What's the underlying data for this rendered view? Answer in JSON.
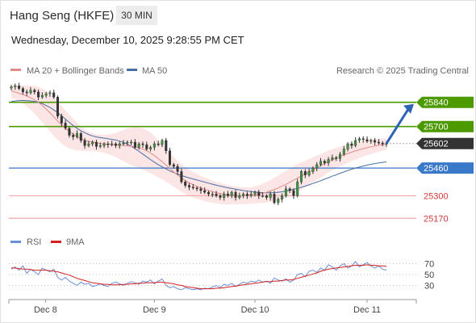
{
  "header": {
    "title": "Hang Seng (HKFE)",
    "interval": "30 MIN",
    "datetime": "Wednesday, December 10, 2025 9:28:55 PM CET"
  },
  "legend": {
    "ma20": "MA 20 + Bollinger Bands",
    "ma50": "MA 50",
    "source": "Research © 2025 Trading Central",
    "rsi": "RSI",
    "ma9": "9MA"
  },
  "colors": {
    "resistance": "#4c9a00",
    "current": "#333333",
    "pivot": "#3a78c9",
    "support": "#d93b3b",
    "support_line": "#f2a9a9",
    "ma20": "#e58a8a",
    "ma50": "#4a6fa5",
    "band": "#fbe0e0",
    "rsi": "#6b8fd6",
    "ma9": "#d42020",
    "arrow": "#2e64b5"
  },
  "chart_data": [
    {
      "type": "candlestick",
      "title": "",
      "x_ticks": [
        "Dec 8",
        "Dec 9",
        "Dec 10",
        "Dec 11"
      ],
      "ylim": [
        25120,
        25960
      ],
      "levels": [
        {
          "value": 25840,
          "kind": "resistance"
        },
        {
          "value": 25700,
          "kind": "resistance"
        },
        {
          "value": 25602,
          "kind": "current"
        },
        {
          "value": 25460,
          "kind": "pivot"
        },
        {
          "value": 25300,
          "kind": "support"
        },
        {
          "value": 25170,
          "kind": "support"
        }
      ],
      "close": [
        25930,
        25935,
        25920,
        25900,
        25895,
        25910,
        25900,
        25870,
        25880,
        25890,
        25895,
        25870,
        25760,
        25720,
        25690,
        25650,
        25640,
        25660,
        25620,
        25590,
        25600,
        25610,
        25585,
        25590,
        25600,
        25595,
        25600,
        25590,
        25600,
        25605,
        25610,
        25610,
        25580,
        25600,
        25595,
        25570,
        25580,
        25600,
        25595,
        25620,
        25560,
        25480,
        25470,
        25440,
        25380,
        25360,
        25350,
        25345,
        25340,
        25330,
        25320,
        25310,
        25310,
        25300,
        25290,
        25310,
        25300,
        25320,
        25290,
        25300,
        25310,
        25300,
        25310,
        25320,
        25300,
        25300,
        25290,
        25310,
        25260,
        25280,
        25300,
        25340,
        25330,
        25300,
        25380,
        25440,
        25420,
        25440,
        25460,
        25480,
        25500,
        25490,
        25510,
        25520,
        25515,
        25540,
        25570,
        25600,
        25590,
        25620,
        25630,
        25625,
        25615,
        25620,
        25610,
        25605,
        25600,
        25602
      ],
      "ma20": [
        25905,
        25900,
        25893,
        25885,
        25876,
        25866,
        25855,
        25840,
        25822,
        25802,
        25780,
        25756,
        25732,
        25710,
        25690,
        25672,
        25656,
        25642,
        25630,
        25620,
        25614,
        25610,
        25606,
        25602,
        25600,
        25598,
        25596,
        25594,
        25592,
        25590,
        25588,
        25586,
        25582,
        25578,
        25570,
        25560,
        25547,
        25532,
        25515,
        25497,
        25478,
        25458,
        25438,
        25420,
        25403,
        25388,
        25375,
        25364,
        25354,
        25345,
        25337,
        25330,
        25324,
        25318,
        25313,
        25309,
        25306,
        25304,
        25302,
        25300,
        25300,
        25300,
        25302,
        25305,
        25309,
        25314,
        25320,
        25328,
        25336,
        25345,
        25355,
        25366,
        25378,
        25390,
        25402,
        25414,
        25426,
        25438,
        25450,
        25462,
        25474,
        25486,
        25498,
        25508,
        25518,
        25527,
        25536,
        25544,
        25552,
        25559,
        25566,
        25572,
        25578,
        25583,
        25588,
        25592,
        25596,
        25598
      ],
      "ma50": [
        25845,
        25848,
        25850,
        25851,
        25850,
        25848,
        25845,
        25840,
        25832,
        25822,
        25810,
        25796,
        25780,
        25762,
        25743,
        25724,
        25706,
        25690,
        25676,
        25664,
        25654,
        25646,
        25640,
        25636,
        25633,
        25630,
        25626,
        25622,
        25616,
        25608,
        25598,
        25586,
        25572,
        25557,
        25541,
        25525,
        25509,
        25494,
        25480,
        25467,
        25455,
        25444,
        25434,
        25425,
        25417,
        25410,
        25403,
        25397,
        25391,
        25385,
        25379,
        25373,
        25367,
        25361,
        25356,
        25351,
        25346,
        25342,
        25338,
        25334,
        25330,
        25327,
        25324,
        25322,
        25320,
        25318,
        25317,
        25317,
        25318,
        25320,
        25323,
        25327,
        25332,
        25337,
        25343,
        25349,
        25356,
        25363,
        25371,
        25379,
        25387,
        25396,
        25404,
        25413,
        25421,
        25430,
        25438,
        25446,
        25453,
        25460,
        25466,
        25472,
        25477,
        25482,
        25486,
        25490,
        25493,
        25496
      ],
      "band_half_width": [
        40,
        42,
        46,
        52,
        60,
        70,
        80,
        90,
        98,
        104,
        108,
        110,
        110,
        108,
        104,
        98,
        90,
        80,
        70,
        62,
        56,
        52,
        50,
        50,
        52,
        56,
        62,
        70,
        80,
        90,
        100,
        108,
        114,
        118,
        120,
        120,
        118,
        114,
        108,
        102,
        96,
        90,
        86,
        82,
        80,
        78,
        76,
        74,
        72,
        70,
        68,
        66,
        64,
        62,
        60,
        58,
        56,
        54,
        52,
        50,
        48,
        48,
        48,
        50,
        52,
        56,
        60,
        64,
        68,
        72,
        76,
        78,
        80,
        80,
        80,
        78,
        76,
        74,
        72,
        70,
        68,
        66,
        64,
        62,
        60,
        58,
        56,
        54,
        52,
        50,
        48,
        46,
        44,
        42,
        40,
        38,
        36,
        34
      ]
    },
    {
      "type": "line",
      "title": "",
      "ylim": [
        10,
        90
      ],
      "y_ticks": [
        70,
        50,
        30
      ],
      "series": [
        {
          "name": "RSI",
          "values": [
            60,
            64,
            58,
            66,
            52,
            60,
            55,
            50,
            62,
            58,
            55,
            60,
            45,
            40,
            45,
            38,
            34,
            30,
            36,
            32,
            34,
            28,
            30,
            33,
            30,
            28,
            34,
            36,
            33,
            30,
            34,
            37,
            35,
            32,
            38,
            36,
            40,
            33,
            38,
            42,
            30,
            26,
            28,
            24,
            22,
            26,
            24,
            22,
            24,
            22,
            25,
            24,
            27,
            30,
            26,
            32,
            30,
            34,
            28,
            32,
            36,
            34,
            38,
            36,
            40,
            36,
            38,
            34,
            44,
            40,
            38,
            42,
            36,
            40,
            50,
            52,
            46,
            56,
            58,
            54,
            62,
            58,
            68,
            64,
            58,
            66,
            70,
            62,
            66,
            74,
            64,
            68,
            72,
            66,
            62,
            66,
            60,
            58
          ]
        },
        {
          "name": "9MA",
          "values": [
            62,
            62,
            61,
            60,
            60,
            59,
            58,
            58,
            58,
            58,
            57,
            56,
            55,
            53,
            51,
            49,
            46,
            43,
            41,
            39,
            37,
            35,
            34,
            33,
            32,
            32,
            31,
            31,
            31,
            32,
            32,
            33,
            33,
            34,
            34,
            35,
            35,
            35,
            36,
            36,
            35,
            34,
            33,
            31,
            30,
            28,
            27,
            26,
            25,
            24,
            24,
            24,
            24,
            25,
            25,
            26,
            27,
            28,
            29,
            30,
            31,
            32,
            33,
            34,
            35,
            36,
            37,
            37,
            38,
            38,
            39,
            40,
            40,
            41,
            43,
            45,
            47,
            49,
            51,
            53,
            56,
            58,
            60,
            61,
            62,
            63,
            64,
            65,
            66,
            67,
            67,
            67,
            68,
            67,
            67,
            66,
            66,
            65
          ]
        }
      ]
    }
  ]
}
